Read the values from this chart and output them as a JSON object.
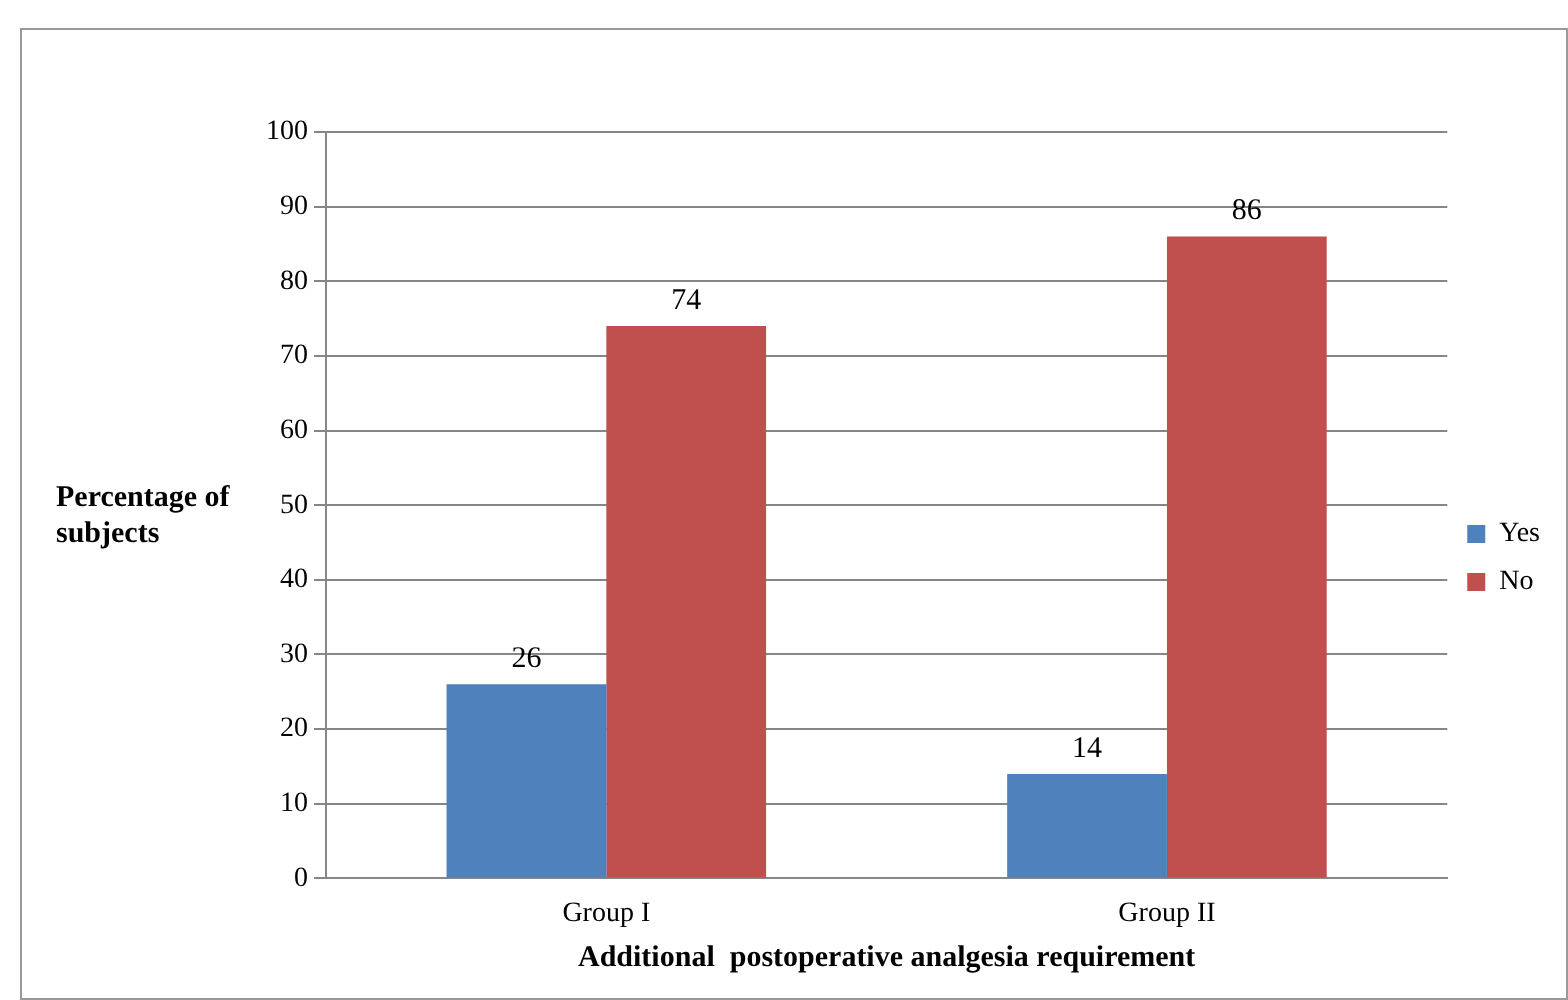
{
  "chart_data": {
    "type": "bar",
    "xlabel": "Additional  postoperative analgesia requirement",
    "ylabel": "Percentage of subjects",
    "categories": [
      "Group I",
      "Group II"
    ],
    "series": [
      {
        "name": "Yes",
        "color": "#4f81bd",
        "values": [
          26,
          14
        ]
      },
      {
        "name": "No",
        "color": "#c0504d",
        "values": [
          74,
          86
        ]
      }
    ],
    "ylim": [
      0,
      100
    ],
    "yticks": [
      0,
      10,
      20,
      30,
      40,
      50,
      60,
      70,
      80,
      90,
      100
    ],
    "grid": "y",
    "legend": "right",
    "data_labels": true
  }
}
